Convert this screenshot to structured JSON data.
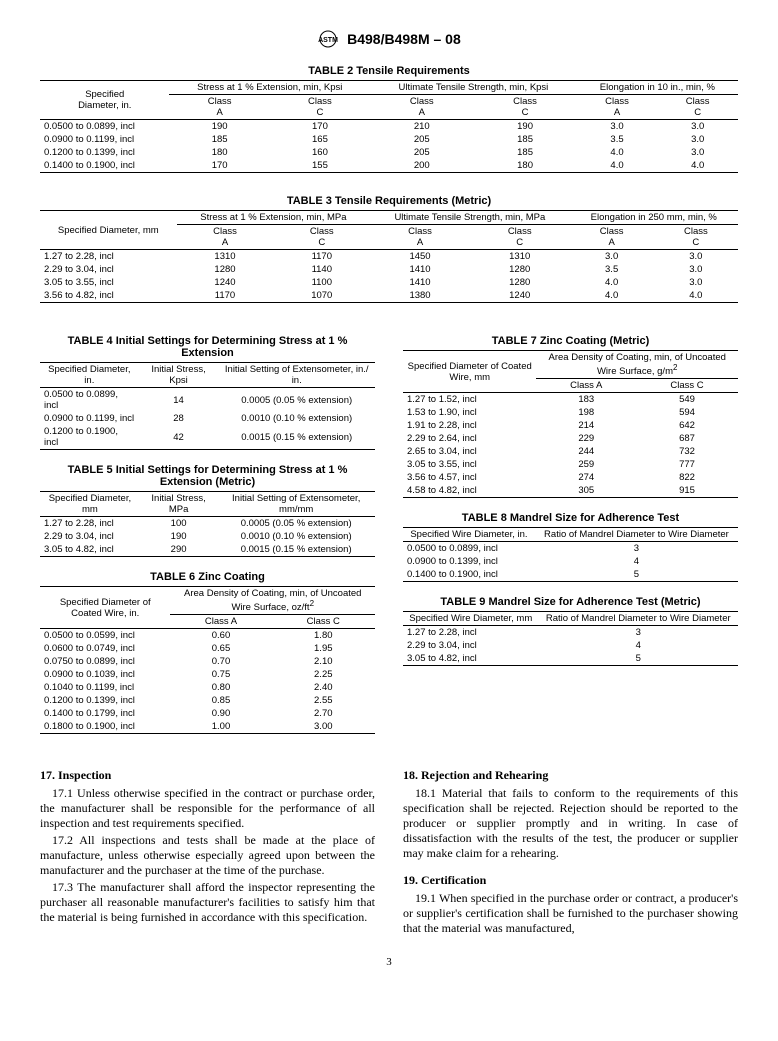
{
  "doc_title": "B498/B498M – 08",
  "table2": {
    "title": "TABLE 2 Tensile Requirements",
    "col0": "Specified\nDiameter, in.",
    "group1": "Stress at 1 % Extension, min, Kpsi",
    "group2": "Ultimate Tensile Strength, min, Kpsi",
    "group3": "Elongation in 10 in., min, %",
    "subA": "Class\nA",
    "subC": "Class\nC",
    "rows": [
      [
        "0.0500 to 0.0899, incl",
        "190",
        "170",
        "210",
        "190",
        "3.0",
        "3.0"
      ],
      [
        "0.0900 to 0.1199, incl",
        "185",
        "165",
        "205",
        "185",
        "3.5",
        "3.0"
      ],
      [
        "0.1200 to 0.1399, incl",
        "180",
        "160",
        "205",
        "185",
        "4.0",
        "3.0"
      ],
      [
        "0.1400 to 0.1900, incl",
        "170",
        "155",
        "200",
        "180",
        "4.0",
        "4.0"
      ]
    ]
  },
  "table3": {
    "title": "TABLE 3 Tensile Requirements (Metric)",
    "col0": "Specified Diameter, mm",
    "group1": "Stress at 1 % Extension, min, MPa",
    "group2": "Ultimate Tensile Strength, min, MPa",
    "group3": "Elongation in 250 mm, min, %",
    "subA": "Class\nA",
    "subC": "Class\nC",
    "rows": [
      [
        "1.27 to 2.28, incl",
        "1310",
        "1170",
        "1450",
        "1310",
        "3.0",
        "3.0"
      ],
      [
        "2.29 to 3.04, incl",
        "1280",
        "1140",
        "1410",
        "1280",
        "3.5",
        "3.0"
      ],
      [
        "3.05 to 3.55, incl",
        "1240",
        "1100",
        "1410",
        "1280",
        "4.0",
        "3.0"
      ],
      [
        "3.56 to 4.82, incl",
        "1170",
        "1070",
        "1380",
        "1240",
        "4.0",
        "4.0"
      ]
    ]
  },
  "table4": {
    "title": "TABLE 4 Initial Settings for Determining Stress at 1 % Extension",
    "h0": "Specified Diameter, in.",
    "h1": "Initial Stress, Kpsi",
    "h2": "Initial Setting of Extensometer, in./ in.",
    "rows": [
      [
        "0.0500 to 0.0899, incl",
        "14",
        "0.0005 (0.05 % extension)"
      ],
      [
        "0.0900 to 0.1199, incl",
        "28",
        "0.0010 (0.10 % extension)"
      ],
      [
        "0.1200 to 0.1900, incl",
        "42",
        "0.0015 (0.15 % extension)"
      ]
    ]
  },
  "table5": {
    "title": "TABLE 5 Initial Settings for Determining Stress at 1 % Extension (Metric)",
    "h0": "Specified Diameter, mm",
    "h1": "Initial Stress, MPa",
    "h2": "Initial Setting of Extensometer, mm/mm",
    "rows": [
      [
        "1.27 to 2.28, incl",
        "100",
        "0.0005 (0.05 % extension)"
      ],
      [
        "2.29 to 3.04, incl",
        "190",
        "0.0010 (0.10 % extension)"
      ],
      [
        "3.05 to 4.82, incl",
        "290",
        "0.0015 (0.15 % extension)"
      ]
    ]
  },
  "table6": {
    "title": "TABLE 6 Zinc Coating",
    "h0": "Specified Diameter of Coated Wire, in.",
    "g": "Area Density of Coating, min, of Uncoated Wire Surface, oz/ft",
    "subA": "Class A",
    "subC": "Class C",
    "rows": [
      [
        "0.0500 to 0.0599, incl",
        "0.60",
        "1.80"
      ],
      [
        "0.0600 to 0.0749, incl",
        "0.65",
        "1.95"
      ],
      [
        "0.0750 to 0.0899, incl",
        "0.70",
        "2.10"
      ],
      [
        "0.0900 to 0.1039, incl",
        "0.75",
        "2.25"
      ],
      [
        "0.1040 to 0.1199, incl",
        "0.80",
        "2.40"
      ],
      [
        "0.1200 to 0.1399, incl",
        "0.85",
        "2.55"
      ],
      [
        "0.1400 to 0.1799, incl",
        "0.90",
        "2.70"
      ],
      [
        "0.1800 to 0.1900, incl",
        "1.00",
        "3.00"
      ]
    ]
  },
  "table7": {
    "title": "TABLE 7 Zinc Coating (Metric)",
    "h0": "Specified Diameter of Coated Wire, mm",
    "g": "Area Density of Coating, min, of Uncoated Wire Surface, g/m",
    "subA": "Class A",
    "subC": "Class C",
    "rows": [
      [
        "1.27 to 1.52, incl",
        "183",
        "549"
      ],
      [
        "1.53 to 1.90, incl",
        "198",
        "594"
      ],
      [
        "1.91 to 2.28, incl",
        "214",
        "642"
      ],
      [
        "2.29 to 2.64, incl",
        "229",
        "687"
      ],
      [
        "2.65 to 3.04, incl",
        "244",
        "732"
      ],
      [
        "3.05 to 3.55, incl",
        "259",
        "777"
      ],
      [
        "3.56 to 4.57, incl",
        "274",
        "822"
      ],
      [
        "4.58 to 4.82, incl",
        "305",
        "915"
      ]
    ]
  },
  "table8": {
    "title": "TABLE 8 Mandrel Size for Adherence Test",
    "h0": "Specified Wire Diameter, in.",
    "h1": "Ratio of Mandrel Diameter to Wire Diameter",
    "rows": [
      [
        "0.0500 to 0.0899, incl",
        "3"
      ],
      [
        "0.0900 to 0.1399, incl",
        "4"
      ],
      [
        "0.1400 to 0.1900, incl",
        "5"
      ]
    ]
  },
  "table9": {
    "title": "TABLE 9 Mandrel Size for Adherence Test (Metric)",
    "h0": "Specified Wire Diameter, mm",
    "h1": "Ratio of Mandrel Diameter to Wire Diameter",
    "rows": [
      [
        "1.27 to 2.28, incl",
        "3"
      ],
      [
        "2.29 to 3.04, incl",
        "4"
      ],
      [
        "3.05 to 4.82, incl",
        "5"
      ]
    ]
  },
  "body": {
    "s17_h": "17.  Inspection",
    "s17_1": "17.1 Unless otherwise specified in the contract or purchase order, the manufacturer shall be responsible for the performance of all inspection and test requirements specified.",
    "s17_2": "17.2 All inspections and tests shall be made at the place of manufacture, unless otherwise especially agreed upon between the manufacturer and the purchaser at the time of the purchase.",
    "s17_3": "17.3 The manufacturer shall afford the inspector representing the purchaser all reasonable manufacturer's facilities to satisfy him that the material is being furnished in accordance with this specification.",
    "s18_h": "18.  Rejection and Rehearing",
    "s18_1": "18.1 Material that fails to conform to the requirements of this specification shall be rejected. Rejection should be reported to the producer or supplier promptly and in writing. In case of dissatisfaction with the results of the test, the producer or supplier may make claim for a rehearing.",
    "s19_h": "19.  Certification",
    "s19_1": "19.1 When specified in the purchase order or contract, a producer's or supplier's certification shall be furnished to the purchaser showing that the material was manufactured,"
  },
  "pagenum": "3"
}
